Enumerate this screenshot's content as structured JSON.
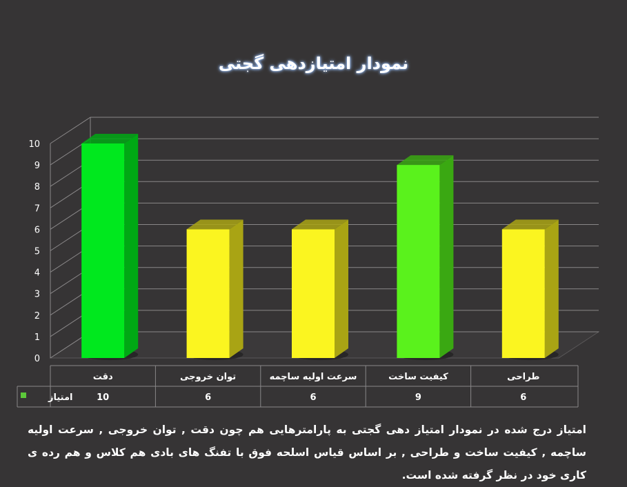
{
  "chart_data": {
    "type": "bar",
    "title": "نمودار امتیازدهی گجتی",
    "categories": [
      "دقت",
      "توان خروجی",
      "سرعت اولیه ساچمه",
      "کیفیت ساخت",
      "طراحی"
    ],
    "series": [
      {
        "name": "امتیاز",
        "values": [
          10,
          6,
          6,
          9,
          6
        ]
      }
    ],
    "value_labels": [
      "10",
      "6",
      "6",
      "9",
      "6"
    ],
    "ylim": [
      0,
      10
    ],
    "yticks": [
      "0",
      "1",
      "2",
      "3",
      "4",
      "5",
      "6",
      "7",
      "8",
      "9",
      "10"
    ],
    "grid": true,
    "legend": "data-table",
    "colors": {
      "high": "#00e81e",
      "high_dark": "#00a814",
      "mid": "#5af21c",
      "mid_dark": "#3aa812",
      "low": "#fbf520",
      "low_dark": "#a9a414",
      "legend_key": "#5cc83a"
    }
  },
  "description": "امتیاز درج شده در نمودار امتیاز دهی گجتی  به پارامترهایی هم چون دقت , توان خروجی , سرعت اولیه ساچمه , کیفیت ساخت و طراحی , بر اساس قیاس اسلحه فوق با تفنگ های بادی هم کلاس و هم رده ی کاری خود در نظر گرفته شده است."
}
